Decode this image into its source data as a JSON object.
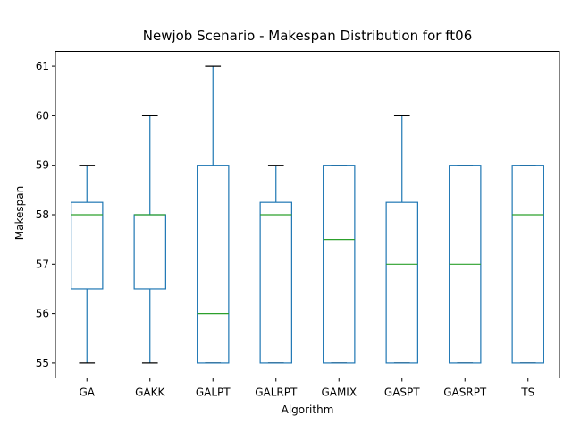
{
  "chart_data": {
    "type": "box",
    "title": "Newjob Scenario - Makespan Distribution for ft06",
    "xlabel": "Algorithm",
    "ylabel": "Makespan",
    "ylim": [
      54.7,
      61.3
    ],
    "yticks": [
      55,
      56,
      57,
      58,
      59,
      60,
      61
    ],
    "grid": false,
    "categories": [
      "GA",
      "GAKK",
      "GALPT",
      "GALRPT",
      "GAMIX",
      "GASPT",
      "GASRPT",
      "TS"
    ],
    "boxes": [
      {
        "min": 55,
        "q1": 56.5,
        "median": 58,
        "q3": 58.25,
        "max": 59
      },
      {
        "min": 55,
        "q1": 56.5,
        "median": 58,
        "q3": 58,
        "max": 60
      },
      {
        "min": 55,
        "q1": 55,
        "median": 56,
        "q3": 59,
        "max": 61
      },
      {
        "min": 55,
        "q1": 55,
        "median": 58,
        "q3": 58.25,
        "max": 59
      },
      {
        "min": 55,
        "q1": 55,
        "median": 57.5,
        "q3": 59,
        "max": 59
      },
      {
        "min": 55,
        "q1": 55,
        "median": 57,
        "q3": 58.25,
        "max": 60
      },
      {
        "min": 55,
        "q1": 55,
        "median": 57,
        "q3": 59,
        "max": 59
      },
      {
        "min": 55,
        "q1": 55,
        "median": 58,
        "q3": 59,
        "max": 59
      }
    ],
    "colors": {
      "box": "#1f77b4",
      "median": "#2ca02c",
      "axis": "#000000"
    }
  }
}
